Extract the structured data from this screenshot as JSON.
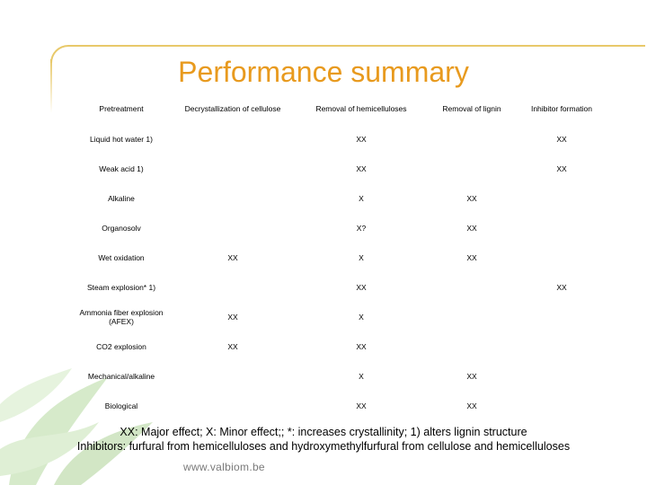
{
  "slide": {
    "title": "Performance summary",
    "footer_line1": "XX: Major effect; X: Minor effect;; *: increases crystallinity;  1) alters lignin structure",
    "footer_line2": "Inhibitors: furfural from hemicelluloses and hydroxymethylfurfural from cellulose and hemicelluloses",
    "url": "www.valbiom.be",
    "accent_color": "#e89a1e",
    "frame_color": "#e8c96a"
  },
  "table": {
    "headers": [
      "Pretreatment",
      "Decrystallization of cellulose",
      "Removal of  hemicelluloses",
      "Removal of lignin",
      "Inhibitor formation"
    ],
    "rows": [
      [
        "Liquid hot water 1)",
        "",
        "XX",
        "",
        "XX"
      ],
      [
        "Weak acid 1)",
        "",
        "XX",
        "",
        "XX"
      ],
      [
        "Alkaline",
        "",
        "X",
        "XX",
        ""
      ],
      [
        "Organosolv",
        "",
        "X?",
        "XX",
        ""
      ],
      [
        "Wet oxidation",
        "XX",
        "X",
        "XX",
        ""
      ],
      [
        "Steam explosion* 1)",
        "",
        "XX",
        "",
        "XX"
      ],
      [
        "Ammonia fiber explosion (AFEX)",
        "XX",
        "X",
        "",
        ""
      ],
      [
        "CO2 explosion",
        "XX",
        "XX",
        "",
        ""
      ],
      [
        "Mechanical/alkaline",
        "",
        "X",
        "XX",
        ""
      ],
      [
        "Biological",
        "",
        "XX",
        "XX",
        ""
      ]
    ]
  }
}
